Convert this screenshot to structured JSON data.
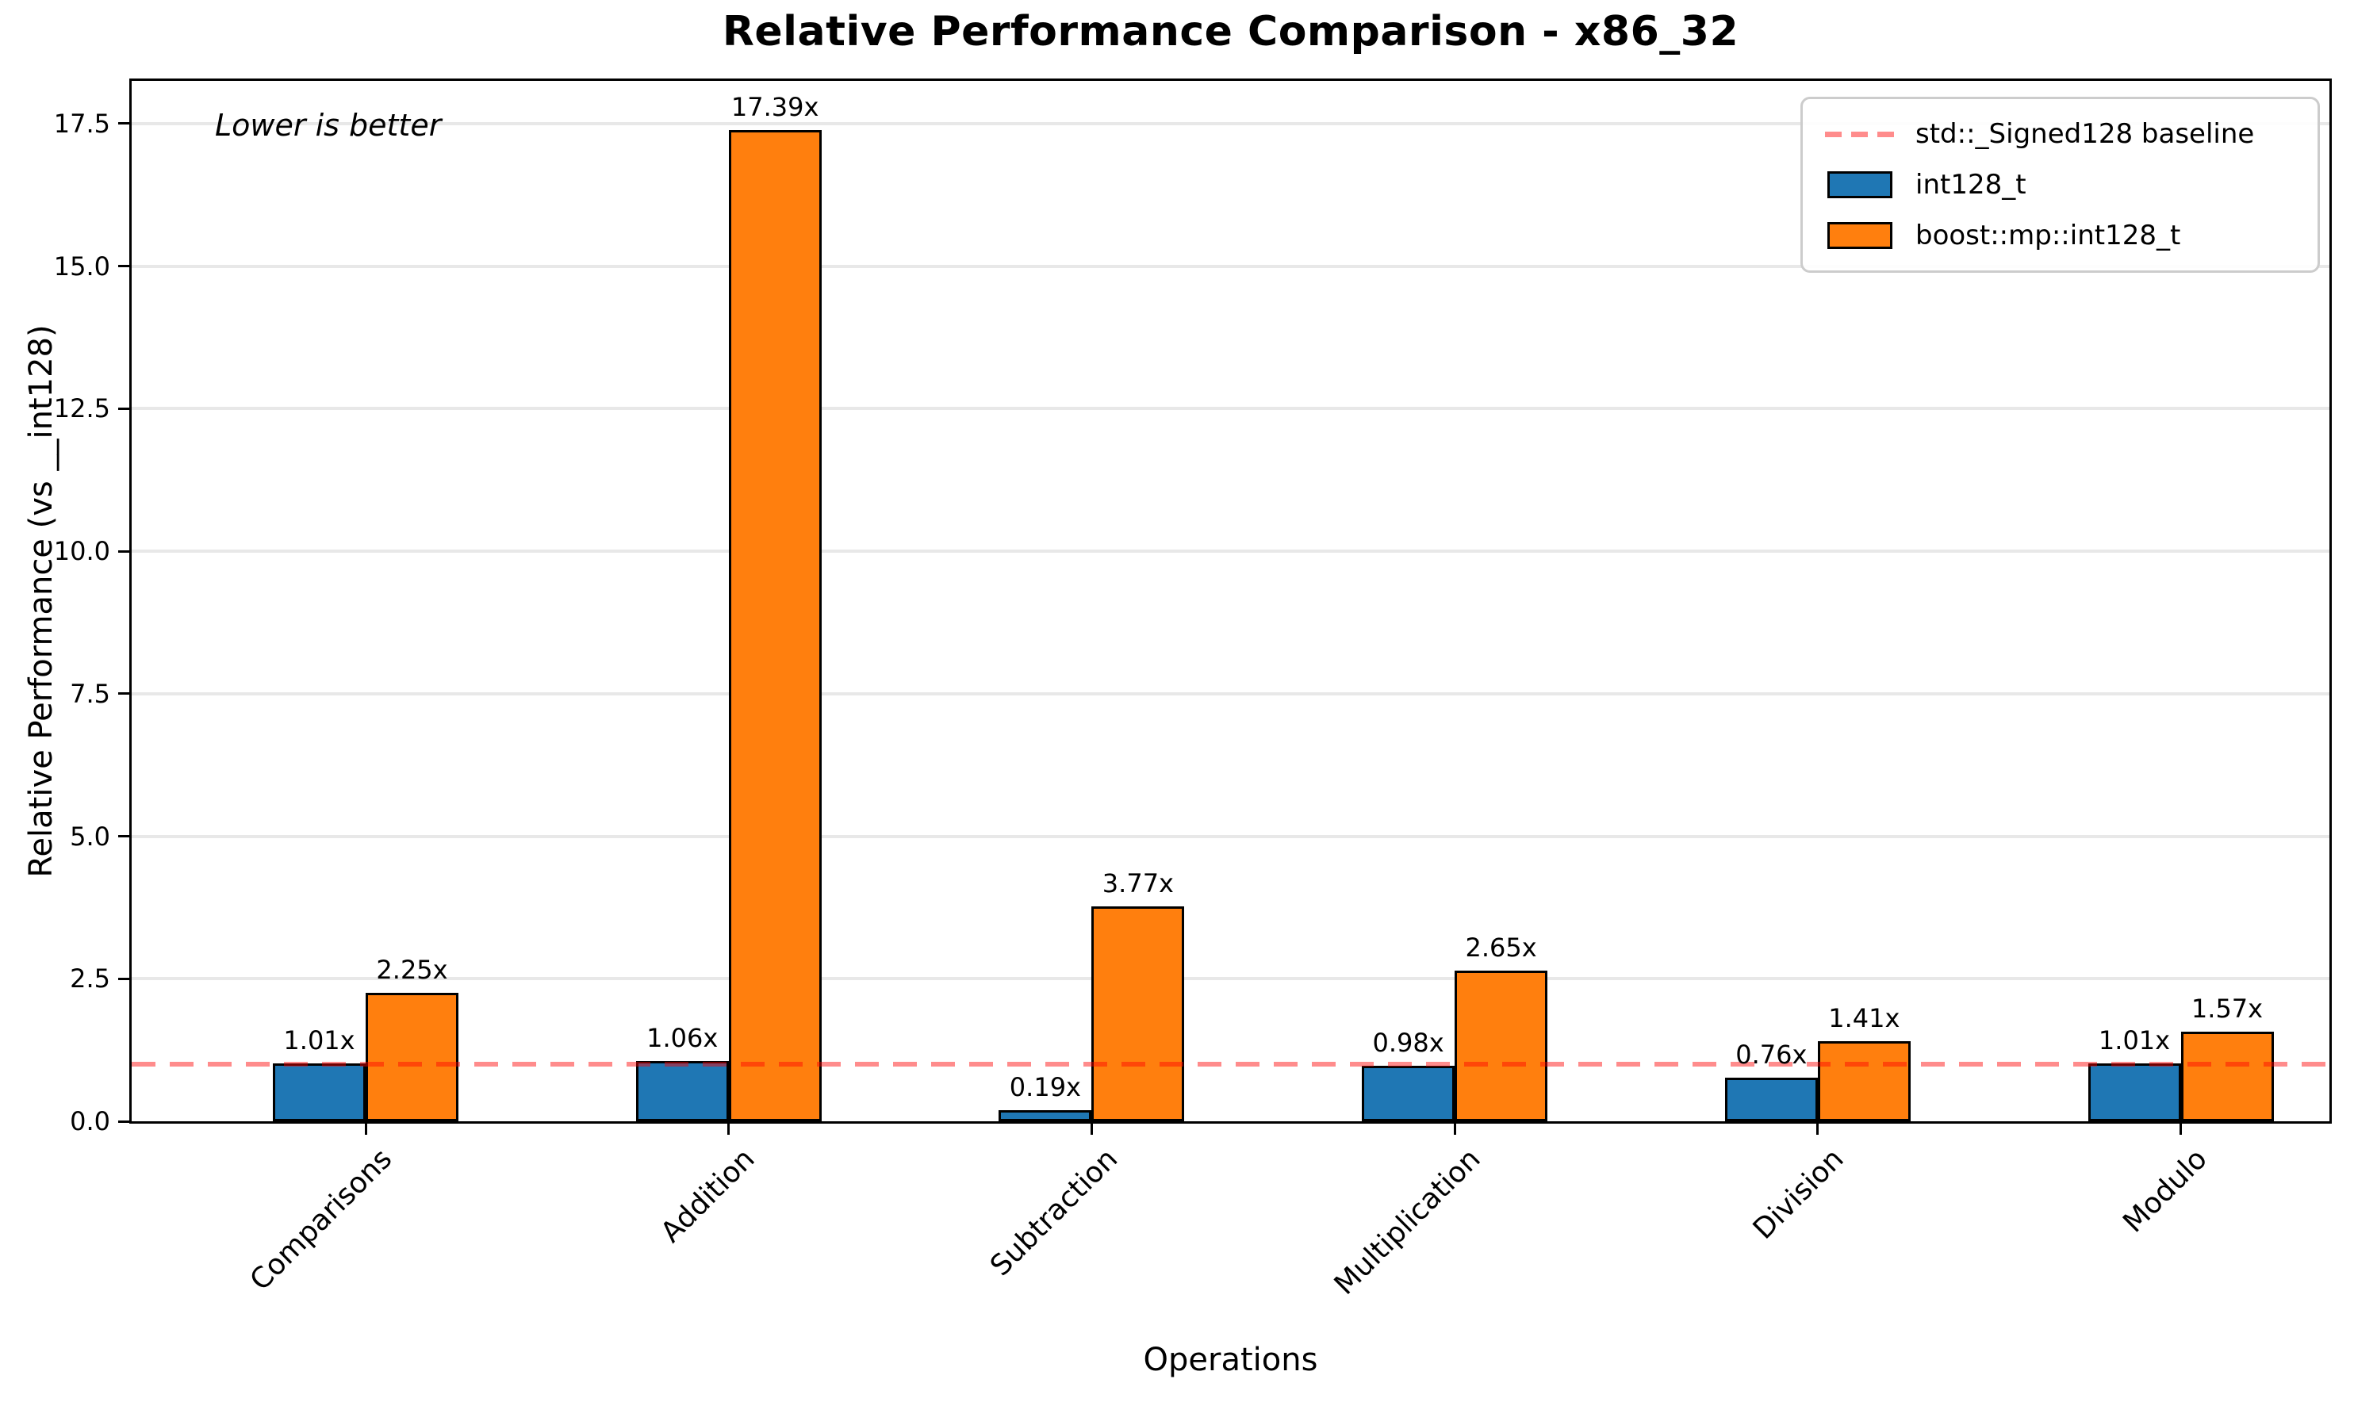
{
  "chart_data": {
    "type": "bar",
    "title": "Relative Performance Comparison - x86_32",
    "xlabel": "Operations",
    "ylabel": "Relative Performance (vs __int128)",
    "annotation": "Lower is better",
    "categories": [
      "Comparisons",
      "Addition",
      "Subtraction",
      "Multiplication",
      "Division",
      "Modulo"
    ],
    "series": [
      {
        "name": "int128_t",
        "color": "#1f77b4",
        "values": [
          1.01,
          1.06,
          0.19,
          0.98,
          0.76,
          1.01
        ],
        "value_labels": [
          "1.01x",
          "1.06x",
          "0.19x",
          "0.98x",
          "0.76x",
          "1.01x"
        ]
      },
      {
        "name": "boost::mp::int128_t",
        "color": "#ff7f0e",
        "values": [
          2.25,
          17.39,
          3.77,
          2.65,
          1.41,
          1.57
        ],
        "value_labels": [
          "2.25x",
          "17.39x",
          "3.77x",
          "2.65x",
          "1.41x",
          "1.57x"
        ]
      }
    ],
    "baseline": {
      "value": 1.0,
      "label": "std::_Signed128 baseline",
      "color": "#ff0000",
      "alpha": 0.45,
      "style": "dashed"
    },
    "yticks": [
      "0.0",
      "2.5",
      "5.0",
      "7.5",
      "10.0",
      "12.5",
      "15.0",
      "17.5"
    ],
    "ylim": [
      0,
      18.25
    ],
    "grid": true,
    "legend_position": "upper right",
    "bar_edge_color": "#000000",
    "grid_color": "#e8e8e8"
  }
}
